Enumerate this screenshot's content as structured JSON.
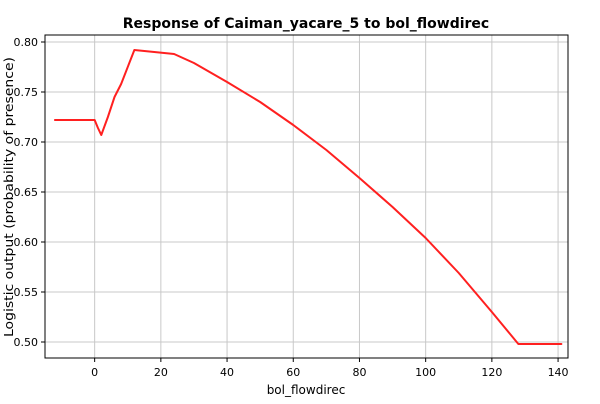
{
  "chart_data": {
    "type": "line",
    "title": "Response of Caiman_yacare_5 to bol_flowdirec",
    "xlabel": "bol_flowdirec",
    "ylabel": "Logistic output (probability of presence)",
    "xlim": [
      -15,
      143
    ],
    "ylim": [
      0.484,
      0.807
    ],
    "x_ticks": [
      0,
      20,
      40,
      60,
      80,
      100,
      120,
      140
    ],
    "y_ticks": [
      0.5,
      0.55,
      0.6,
      0.65,
      0.7,
      0.75,
      0.8
    ],
    "x_tick_labels": [
      "0",
      "20",
      "40",
      "60",
      "80",
      "100",
      "120",
      "140"
    ],
    "y_tick_labels": [
      "0.50",
      "0.55",
      "0.60",
      "0.65",
      "0.70",
      "0.75",
      "0.80"
    ],
    "grid": true,
    "colors": {
      "series": "#ff2020",
      "grid": "#c8c8c8",
      "frame": "#000000"
    },
    "series": [
      {
        "x": [
          -12,
          0,
          1,
          2,
          4,
          6,
          8,
          12,
          18,
          24,
          30,
          40,
          50,
          60,
          70,
          80,
          90,
          100,
          110,
          120,
          125,
          128,
          135,
          141
        ],
        "y": [
          0.722,
          0.722,
          0.714,
          0.707,
          0.725,
          0.745,
          0.758,
          0.792,
          0.79,
          0.788,
          0.779,
          0.76,
          0.74,
          0.717,
          0.692,
          0.664,
          0.635,
          0.604,
          0.569,
          0.53,
          0.51,
          0.498,
          0.498,
          0.498
        ]
      }
    ]
  }
}
